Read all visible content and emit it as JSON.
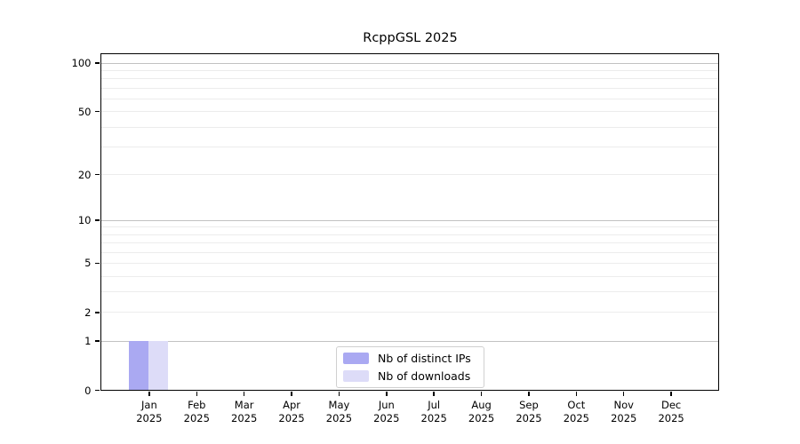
{
  "chart_data": {
    "type": "bar",
    "title": "RcppGSL 2025",
    "year_label": "2025",
    "categories": [
      "Jan",
      "Feb",
      "Mar",
      "Apr",
      "May",
      "Jun",
      "Jul",
      "Aug",
      "Sep",
      "Oct",
      "Nov",
      "Dec"
    ],
    "series": [
      {
        "name": "Nb of distinct IPs",
        "color": "#aaa9f2",
        "values": [
          1,
          0,
          0,
          0,
          0,
          0,
          0,
          0,
          0,
          0,
          0,
          0
        ]
      },
      {
        "name": "Nb of downloads",
        "color": "#dddcf8",
        "values": [
          1,
          0,
          0,
          0,
          0,
          0,
          0,
          0,
          0,
          0,
          0,
          0
        ]
      }
    ],
    "xlabel": "",
    "ylabel": "",
    "yscale": "log1p",
    "ylim": [
      0,
      113
    ],
    "yticks": [
      100,
      50,
      20,
      10,
      5,
      2,
      1,
      0
    ],
    "grid": {
      "major": [
        1,
        10,
        100
      ],
      "minor": [
        2,
        3,
        4,
        5,
        6,
        7,
        8,
        9,
        20,
        30,
        40,
        50,
        60,
        70,
        80,
        90
      ]
    },
    "legend": {
      "position": "lower center"
    }
  }
}
